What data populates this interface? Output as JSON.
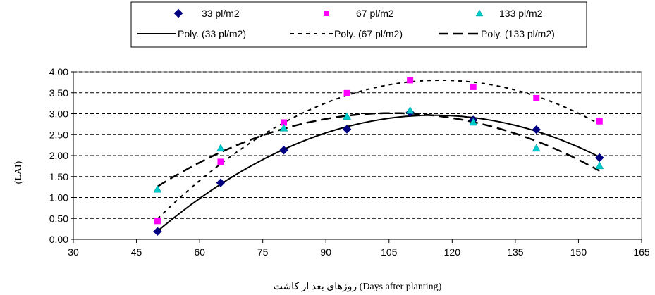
{
  "chart_data": {
    "type": "scatter",
    "xlabel": "روزهای بعد از کاشت (Days after planting)",
    "ylabel": "(LAI)",
    "xlim": [
      30,
      165
    ],
    "ylim": [
      0,
      4
    ],
    "x_ticks": [
      "30",
      "45",
      "60",
      "75",
      "90",
      "105",
      "120",
      "135",
      "150",
      "165"
    ],
    "y_ticks": [
      "0.00",
      "0.50",
      "1.00",
      "1.50",
      "2.00",
      "2.50",
      "3.00",
      "3.50",
      "4.00"
    ],
    "grid": "horizontal dashed",
    "legend": {
      "position": "top",
      "rows": [
        [
          "33 pl/m2",
          "67 pl/m2",
          "133 pl/m2"
        ],
        [
          "Poly. (33 pl/m2)",
          "Poly. (67 pl/m2)",
          "Poly. (133 pl/m2)"
        ]
      ]
    },
    "series": [
      {
        "name": "33 pl/m2",
        "marker": "diamond",
        "color": "#000080",
        "x": [
          50,
          65,
          80,
          95,
          110,
          125,
          140,
          155
        ],
        "y": [
          0.19,
          1.35,
          2.13,
          2.63,
          3.03,
          2.85,
          2.62,
          1.95
        ],
        "trend": {
          "name": "Poly. (33 pl/m2)",
          "style": "solid"
        }
      },
      {
        "name": "67 pl/m2",
        "marker": "square",
        "color": "#ff00ff",
        "x": [
          50,
          65,
          80,
          95,
          110,
          125,
          140,
          155
        ],
        "y": [
          0.44,
          1.85,
          2.79,
          3.49,
          3.8,
          3.64,
          3.37,
          2.82
        ],
        "trend": {
          "name": "Poly. (67 pl/m2)",
          "style": "dotted"
        }
      },
      {
        "name": "133 pl/m2",
        "marker": "triangle",
        "color": "#00cccc",
        "x": [
          50,
          65,
          80,
          95,
          110,
          125,
          140,
          155
        ],
        "y": [
          1.19,
          2.17,
          2.65,
          2.93,
          3.07,
          2.79,
          2.17,
          1.75
        ],
        "trend": {
          "name": "Poly. (133 pl/m2)",
          "style": "dashed"
        }
      }
    ]
  }
}
